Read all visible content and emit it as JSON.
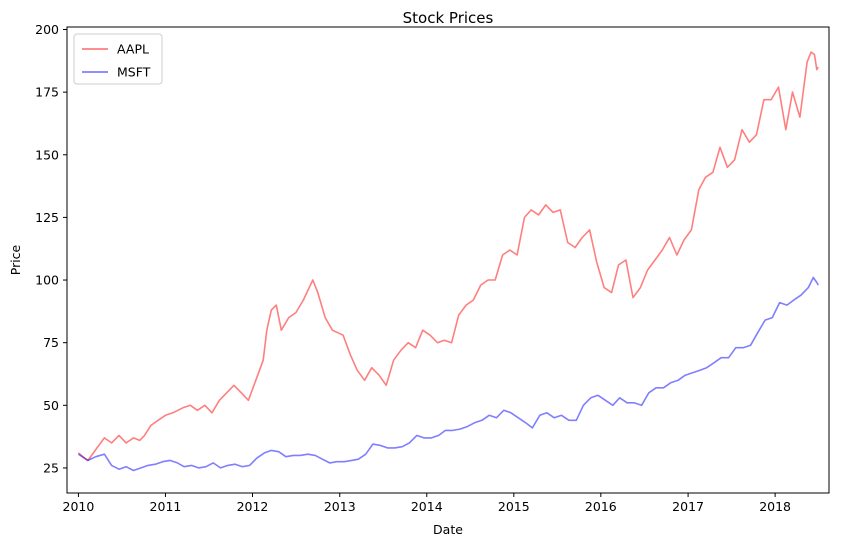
{
  "chart_data": {
    "type": "line",
    "title": "Stock Prices",
    "xlabel": "Date",
    "ylabel": "Price",
    "xlim": [
      "2009-11-14",
      "2018-08-15"
    ],
    "ylim": [
      15,
      201
    ],
    "x_ticks": [
      "2010",
      "2011",
      "2012",
      "2013",
      "2014",
      "2015",
      "2016",
      "2017",
      "2018"
    ],
    "y_ticks": [
      25,
      50,
      75,
      100,
      125,
      150,
      175,
      200
    ],
    "grid": false,
    "legend": "top-left",
    "series": [
      {
        "name": "AAPL",
        "color": "#ff0000",
        "opacity": 0.5,
        "points": [
          [
            "2010-01-01",
            31
          ],
          [
            "2010-01-25",
            29
          ],
          [
            "2010-02-10",
            28
          ],
          [
            "2010-02-25",
            30
          ],
          [
            "2010-03-20",
            33
          ],
          [
            "2010-04-20",
            37
          ],
          [
            "2010-05-20",
            35
          ],
          [
            "2010-06-20",
            38
          ],
          [
            "2010-07-20",
            35
          ],
          [
            "2010-08-20",
            37
          ],
          [
            "2010-09-15",
            36
          ],
          [
            "2010-10-05",
            38
          ],
          [
            "2010-11-01",
            42
          ],
          [
            "2010-12-01",
            44
          ],
          [
            "2011-01-01",
            46
          ],
          [
            "2011-02-01",
            47
          ],
          [
            "2011-03-15",
            49
          ],
          [
            "2011-04-15",
            50
          ],
          [
            "2011-05-15",
            48
          ],
          [
            "2011-06-15",
            50
          ],
          [
            "2011-07-15",
            47
          ],
          [
            "2011-08-15",
            52
          ],
          [
            "2011-09-15",
            55
          ],
          [
            "2011-10-15",
            58
          ],
          [
            "2011-11-15",
            55
          ],
          [
            "2011-12-15",
            52
          ],
          [
            "2012-01-15",
            60
          ],
          [
            "2012-02-15",
            68
          ],
          [
            "2012-03-01",
            80
          ],
          [
            "2012-03-20",
            88
          ],
          [
            "2012-04-10",
            90
          ],
          [
            "2012-05-01",
            80
          ],
          [
            "2012-06-01",
            85
          ],
          [
            "2012-07-01",
            87
          ],
          [
            "2012-08-01",
            92
          ],
          [
            "2012-09-10",
            100
          ],
          [
            "2012-10-01",
            95
          ],
          [
            "2012-11-01",
            85
          ],
          [
            "2012-12-01",
            80
          ],
          [
            "2013-01-15",
            78
          ],
          [
            "2013-02-15",
            70
          ],
          [
            "2013-03-15",
            64
          ],
          [
            "2013-04-15",
            60
          ],
          [
            "2013-05-15",
            65
          ],
          [
            "2013-06-15",
            62
          ],
          [
            "2013-07-15",
            58
          ],
          [
            "2013-08-15",
            68
          ],
          [
            "2013-09-15",
            72
          ],
          [
            "2013-10-15",
            75
          ],
          [
            "2013-11-15",
            73
          ],
          [
            "2013-12-15",
            80
          ],
          [
            "2014-01-15",
            78
          ],
          [
            "2014-02-15",
            75
          ],
          [
            "2014-03-15",
            76
          ],
          [
            "2014-04-15",
            75
          ],
          [
            "2014-05-15",
            86
          ],
          [
            "2014-06-15",
            90
          ],
          [
            "2014-07-15",
            92
          ],
          [
            "2014-08-15",
            98
          ],
          [
            "2014-09-15",
            100
          ],
          [
            "2014-10-15",
            100
          ],
          [
            "2014-11-15",
            110
          ],
          [
            "2014-12-15",
            112
          ],
          [
            "2015-01-15",
            110
          ],
          [
            "2015-02-15",
            125
          ],
          [
            "2015-03-15",
            128
          ],
          [
            "2015-04-15",
            126
          ],
          [
            "2015-05-15",
            130
          ],
          [
            "2015-06-15",
            127
          ],
          [
            "2015-07-15",
            128
          ],
          [
            "2015-08-15",
            115
          ],
          [
            "2015-09-15",
            113
          ],
          [
            "2015-10-15",
            117
          ],
          [
            "2015-11-15",
            120
          ],
          [
            "2015-12-15",
            107
          ],
          [
            "2016-01-15",
            97
          ],
          [
            "2016-02-15",
            95
          ],
          [
            "2016-03-15",
            106
          ],
          [
            "2016-04-15",
            108
          ],
          [
            "2016-05-15",
            93
          ],
          [
            "2016-06-15",
            97
          ],
          [
            "2016-07-15",
            104
          ],
          [
            "2016-08-15",
            108
          ],
          [
            "2016-09-15",
            112
          ],
          [
            "2016-10-15",
            117
          ],
          [
            "2016-11-15",
            110
          ],
          [
            "2016-12-15",
            116
          ],
          [
            "2017-01-15",
            120
          ],
          [
            "2017-02-15",
            136
          ],
          [
            "2017-03-15",
            141
          ],
          [
            "2017-04-15",
            143
          ],
          [
            "2017-05-15",
            153
          ],
          [
            "2017-06-15",
            145
          ],
          [
            "2017-07-15",
            148
          ],
          [
            "2017-08-15",
            160
          ],
          [
            "2017-09-15",
            155
          ],
          [
            "2017-10-15",
            158
          ],
          [
            "2017-11-15",
            172
          ],
          [
            "2017-12-15",
            172
          ],
          [
            "2018-01-15",
            177
          ],
          [
            "2018-02-15",
            160
          ],
          [
            "2018-03-15",
            175
          ],
          [
            "2018-04-15",
            165
          ],
          [
            "2018-05-15",
            187
          ],
          [
            "2018-06-01",
            191
          ],
          [
            "2018-06-15",
            190
          ],
          [
            "2018-06-25",
            184
          ],
          [
            "2018-07-01",
            185
          ]
        ]
      },
      {
        "name": "MSFT",
        "color": "#0000ff",
        "opacity": 0.5,
        "points": [
          [
            "2010-01-01",
            30.5
          ],
          [
            "2010-01-25",
            29
          ],
          [
            "2010-02-10",
            28
          ],
          [
            "2010-03-15",
            29.5
          ],
          [
            "2010-04-20",
            30.5
          ],
          [
            "2010-05-20",
            26
          ],
          [
            "2010-06-20",
            24.5
          ],
          [
            "2010-07-20",
            25.5
          ],
          [
            "2010-08-20",
            24
          ],
          [
            "2010-09-20",
            25
          ],
          [
            "2010-10-20",
            26
          ],
          [
            "2010-11-20",
            26.5
          ],
          [
            "2010-12-20",
            27.5
          ],
          [
            "2011-01-20",
            28
          ],
          [
            "2011-02-20",
            27
          ],
          [
            "2011-03-20",
            25.5
          ],
          [
            "2011-04-20",
            26
          ],
          [
            "2011-05-20",
            25
          ],
          [
            "2011-06-20",
            25.5
          ],
          [
            "2011-07-20",
            27
          ],
          [
            "2011-08-20",
            25
          ],
          [
            "2011-09-20",
            26
          ],
          [
            "2011-10-20",
            26.5
          ],
          [
            "2011-11-20",
            25.5
          ],
          [
            "2011-12-20",
            26
          ],
          [
            "2012-01-20",
            29
          ],
          [
            "2012-02-20",
            31
          ],
          [
            "2012-03-20",
            32
          ],
          [
            "2012-04-20",
            31.5
          ],
          [
            "2012-05-20",
            29.5
          ],
          [
            "2012-06-20",
            30
          ],
          [
            "2012-07-20",
            30
          ],
          [
            "2012-08-20",
            30.5
          ],
          [
            "2012-09-20",
            30
          ],
          [
            "2012-10-20",
            28.5
          ],
          [
            "2012-11-20",
            27
          ],
          [
            "2012-12-20",
            27.5
          ],
          [
            "2013-01-20",
            27.5
          ],
          [
            "2013-02-20",
            28
          ],
          [
            "2013-03-20",
            28.5
          ],
          [
            "2013-04-20",
            30.5
          ],
          [
            "2013-05-20",
            34.5
          ],
          [
            "2013-06-20",
            34
          ],
          [
            "2013-07-20",
            33
          ],
          [
            "2013-08-20",
            33
          ],
          [
            "2013-09-20",
            33.5
          ],
          [
            "2013-10-20",
            35
          ],
          [
            "2013-11-20",
            38
          ],
          [
            "2013-12-20",
            37
          ],
          [
            "2014-01-20",
            37
          ],
          [
            "2014-02-20",
            38
          ],
          [
            "2014-03-20",
            40
          ],
          [
            "2014-04-20",
            40
          ],
          [
            "2014-05-20",
            40.5
          ],
          [
            "2014-06-20",
            41.5
          ],
          [
            "2014-07-20",
            43
          ],
          [
            "2014-08-20",
            44
          ],
          [
            "2014-09-20",
            46
          ],
          [
            "2014-10-20",
            45
          ],
          [
            "2014-11-20",
            48
          ],
          [
            "2014-12-20",
            47
          ],
          [
            "2015-01-20",
            45
          ],
          [
            "2015-02-20",
            43
          ],
          [
            "2015-03-20",
            41
          ],
          [
            "2015-04-20",
            46
          ],
          [
            "2015-05-20",
            47
          ],
          [
            "2015-06-20",
            45
          ],
          [
            "2015-07-20",
            46
          ],
          [
            "2015-08-20",
            44
          ],
          [
            "2015-09-20",
            44
          ],
          [
            "2015-10-20",
            50
          ],
          [
            "2015-11-20",
            53
          ],
          [
            "2015-12-20",
            54
          ],
          [
            "2016-01-20",
            52
          ],
          [
            "2016-02-20",
            50
          ],
          [
            "2016-03-20",
            53
          ],
          [
            "2016-04-20",
            51
          ],
          [
            "2016-05-20",
            51
          ],
          [
            "2016-06-20",
            50
          ],
          [
            "2016-07-20",
            55
          ],
          [
            "2016-08-20",
            57
          ],
          [
            "2016-09-20",
            57
          ],
          [
            "2016-10-20",
            59
          ],
          [
            "2016-11-20",
            60
          ],
          [
            "2016-12-20",
            62
          ],
          [
            "2017-01-20",
            63
          ],
          [
            "2017-02-20",
            64
          ],
          [
            "2017-03-20",
            65
          ],
          [
            "2017-04-20",
            67
          ],
          [
            "2017-05-20",
            69
          ],
          [
            "2017-06-20",
            69
          ],
          [
            "2017-07-20",
            73
          ],
          [
            "2017-08-20",
            73
          ],
          [
            "2017-09-20",
            74
          ],
          [
            "2017-10-20",
            79
          ],
          [
            "2017-11-20",
            84
          ],
          [
            "2017-12-20",
            85
          ],
          [
            "2018-01-20",
            91
          ],
          [
            "2018-02-20",
            90
          ],
          [
            "2018-03-20",
            92
          ],
          [
            "2018-04-20",
            94
          ],
          [
            "2018-05-20",
            97
          ],
          [
            "2018-06-10",
            101
          ],
          [
            "2018-06-25",
            99
          ],
          [
            "2018-07-01",
            98
          ]
        ]
      }
    ]
  }
}
